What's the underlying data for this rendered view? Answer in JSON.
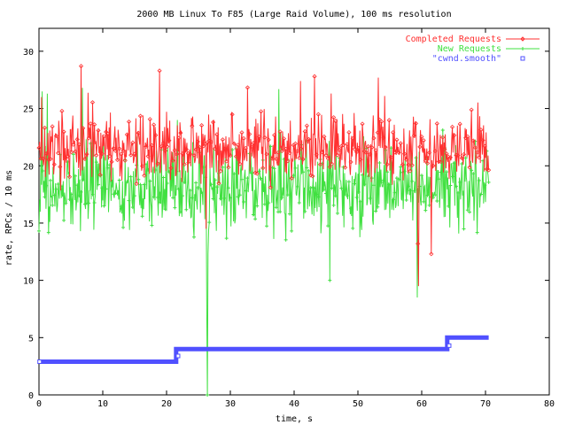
{
  "chart_data": {
    "type": "line",
    "title": "2000 MB Linux To F85 (Large Raid Volume), 100 ms resolution",
    "xlabel": "time, s",
    "ylabel": "rate, RPCs / 10 ms",
    "xlim": [
      0,
      80
    ],
    "ylim": [
      0,
      32
    ],
    "x_ticks": [
      "0",
      "10",
      "20",
      "30",
      "40",
      "50",
      "60",
      "70",
      "80"
    ],
    "y_ticks": [
      "0",
      "5",
      "10",
      "15",
      "20",
      "25",
      "30"
    ],
    "legend_position": "top-right",
    "series": [
      {
        "name": "Completed Requests",
        "color": "#ff3030",
        "marker": "diamond",
        "x_start": 0,
        "x_end": 70.5,
        "typical_range": [
          19,
          25
        ],
        "mean": 21.5,
        "peaks": [
          [
            0.4,
            26
          ],
          [
            6.6,
            28.7
          ],
          [
            18.9,
            28.3
          ],
          [
            41.0,
            27.4
          ],
          [
            43.2,
            27.8
          ],
          [
            53.2,
            27.7
          ]
        ],
        "dips": [
          [
            26.2,
            14.5
          ],
          [
            59.4,
            13.2
          ],
          [
            59.5,
            9.5
          ],
          [
            61.5,
            12.3
          ]
        ]
      },
      {
        "name": "New Requests",
        "color": "#40e040",
        "marker": "plus",
        "x_start": 0,
        "x_end": 70.5,
        "typical_range": [
          15,
          22
        ],
        "mean": 18,
        "peaks": [
          [
            0.5,
            26.5
          ],
          [
            1.3,
            26.3
          ],
          [
            6.8,
            26.8
          ],
          [
            37.6,
            26.7
          ]
        ],
        "dips": [
          [
            26.3,
            7.5
          ],
          [
            26.4,
            0
          ],
          [
            26.5,
            12.3
          ],
          [
            59.3,
            8.5
          ],
          [
            45.6,
            10
          ]
        ]
      },
      {
        "name": "\"cwnd.smooth\"",
        "color": "#5050ff",
        "marker": "square",
        "steps": [
          [
            0,
            2.9
          ],
          [
            21.5,
            2.9
          ],
          [
            21.5,
            4.0
          ],
          [
            64.0,
            4.0
          ],
          [
            64.0,
            5.0
          ],
          [
            70.5,
            5.0
          ]
        ],
        "marker_points": [
          [
            0.1,
            2.9
          ],
          [
            21.8,
            3.4
          ],
          [
            64.3,
            4.3
          ]
        ]
      }
    ]
  }
}
